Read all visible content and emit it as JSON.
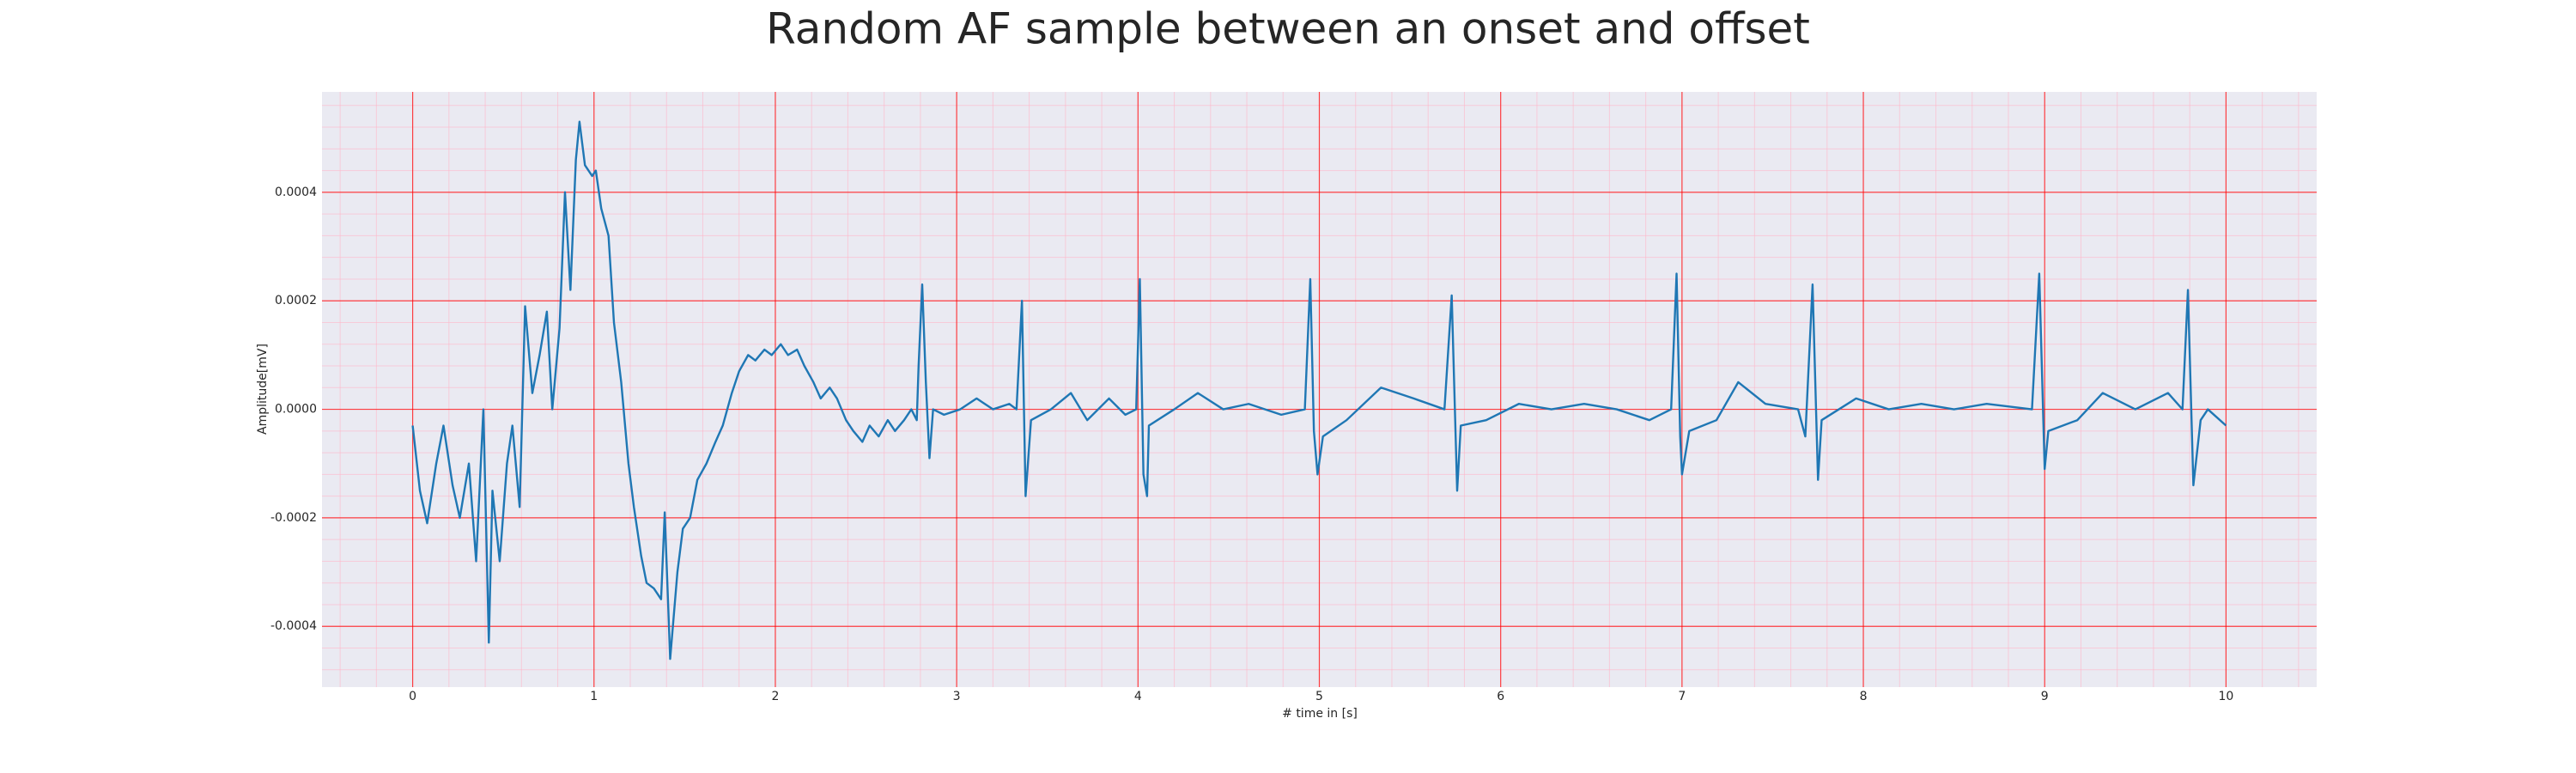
{
  "chart_data": {
    "type": "line",
    "title": "Random AF sample between an onset and offset",
    "xlabel": "# time in [s]",
    "ylabel": "Amplitude[mV]",
    "xlim": [
      -0.5,
      10.5
    ],
    "ylim": [
      -0.000512,
      0.000585
    ],
    "xticks": [
      0,
      1,
      2,
      3,
      4,
      5,
      6,
      7,
      8,
      9,
      10
    ],
    "yticks": [
      -0.0004,
      -0.0002,
      {
        "value": 0,
        "label": "0.0000"
      },
      0.0002,
      0.0004
    ],
    "grid": true,
    "grid_color": "#ff0000",
    "minor_grid": {
      "x_step": 0.2,
      "y_step": 4e-05,
      "color": "#ffb6c8"
    },
    "background": "#eaeaf2",
    "series": [
      {
        "color": "#1f77b4",
        "x": [
          0,
          0.04,
          0.08,
          0.13,
          0.17,
          0.22,
          0.26,
          0.31,
          0.35,
          0.39,
          0.42,
          0.44,
          0.48,
          0.52,
          0.55,
          0.59,
          0.62,
          0.66,
          0.7,
          0.74,
          0.77,
          0.81,
          0.84,
          0.87,
          0.9,
          0.92,
          0.95,
          0.99,
          1.01,
          1.04,
          1.08,
          1.11,
          1.15,
          1.19,
          1.22,
          1.26,
          1.29,
          1.33,
          1.37,
          1.39,
          1.42,
          1.46,
          1.49,
          1.53,
          1.57,
          1.62,
          1.67,
          1.71,
          1.76,
          1.8,
          1.85,
          1.89,
          1.94,
          1.98,
          2.03,
          2.07,
          2.12,
          2.16,
          2.21,
          2.25,
          2.3,
          2.34,
          2.39,
          2.43,
          2.48,
          2.52,
          2.57,
          2.62,
          2.66,
          2.71,
          2.75,
          2.78,
          2.79,
          2.81,
          2.83,
          2.85,
          2.87,
          2.93,
          3.02,
          3.11,
          3.2,
          3.29,
          3.33,
          3.36,
          3.38,
          3.41,
          3.52,
          3.63,
          3.72,
          3.84,
          3.93,
          3.99,
          4.01,
          4.03,
          4.05,
          4.06,
          4.2,
          4.33,
          4.47,
          4.61,
          4.79,
          4.92,
          4.95,
          4.97,
          4.99,
          5.02,
          5.15,
          5.34,
          5.52,
          5.69,
          5.73,
          5.76,
          5.78,
          5.92,
          6.1,
          6.28,
          6.46,
          6.64,
          6.82,
          6.94,
          6.97,
          6.99,
          7.0,
          7.04,
          7.19,
          7.31,
          7.46,
          7.64,
          7.68,
          7.72,
          7.75,
          7.77,
          7.96,
          8.14,
          8.32,
          8.5,
          8.68,
          8.93,
          8.97,
          9.0,
          9.02,
          9.18,
          9.32,
          9.5,
          9.68,
          9.76,
          9.79,
          9.82,
          9.86,
          9.9,
          10
        ],
        "values": [
          -3e-05,
          -0.00015,
          -0.00021,
          -0.0001,
          -3e-05,
          -0.00014,
          -0.0002,
          -0.0001,
          -0.00028,
          0,
          -0.00043,
          -0.00015,
          -0.00028,
          -0.0001,
          -3e-05,
          -0.00018,
          0.00019,
          3e-05,
          0.0001,
          0.00018,
          0,
          0.00015,
          0.0004,
          0.00022,
          0.00046,
          0.00053,
          0.00045,
          0.00043,
          0.00044,
          0.00037,
          0.00032,
          0.00016,
          5e-05,
          -0.0001,
          -0.00018,
          -0.00027,
          -0.00032,
          -0.00033,
          -0.00035,
          -0.00019,
          -0.00046,
          -0.0003,
          -0.00022,
          -0.0002,
          -0.00013,
          -0.0001,
          -6e-05,
          -3e-05,
          3e-05,
          7e-05,
          0.0001,
          9e-05,
          0.00011,
          0.0001,
          0.00012,
          0.0001,
          0.00011,
          8e-05,
          5e-05,
          2e-05,
          4e-05,
          2e-05,
          -2e-05,
          -4e-05,
          -6e-05,
          -3e-05,
          -5e-05,
          -2e-05,
          -4e-05,
          -2e-05,
          0,
          -2e-05,
          8e-05,
          0.00023,
          5e-05,
          -9e-05,
          0,
          -1e-05,
          0,
          2e-05,
          0,
          1e-05,
          0,
          0.0002,
          -0.00016,
          -2e-05,
          0,
          3e-05,
          -2e-05,
          2e-05,
          -1e-05,
          0,
          0.00024,
          -0.00012,
          -0.00016,
          -3e-05,
          0,
          3e-05,
          0,
          1e-05,
          -1e-05,
          0,
          0.00024,
          -4e-05,
          -0.00012,
          -5e-05,
          -2e-05,
          4e-05,
          2e-05,
          0,
          0.00021,
          -0.00015,
          -3e-05,
          -2e-05,
          1e-05,
          0,
          1e-05,
          0,
          -2e-05,
          0,
          0.00025,
          -5e-05,
          -0.00012,
          -4e-05,
          -2e-05,
          5e-05,
          1e-05,
          0,
          -5e-05,
          0.00023,
          -0.00013,
          -2e-05,
          2e-05,
          0,
          1e-05,
          0,
          1e-05,
          0,
          0.00025,
          -0.00011,
          -4e-05,
          -2e-05,
          3e-05,
          0,
          3e-05,
          0,
          0.00022,
          -0.00014,
          -2e-05,
          0,
          -3e-05
        ]
      }
    ]
  }
}
